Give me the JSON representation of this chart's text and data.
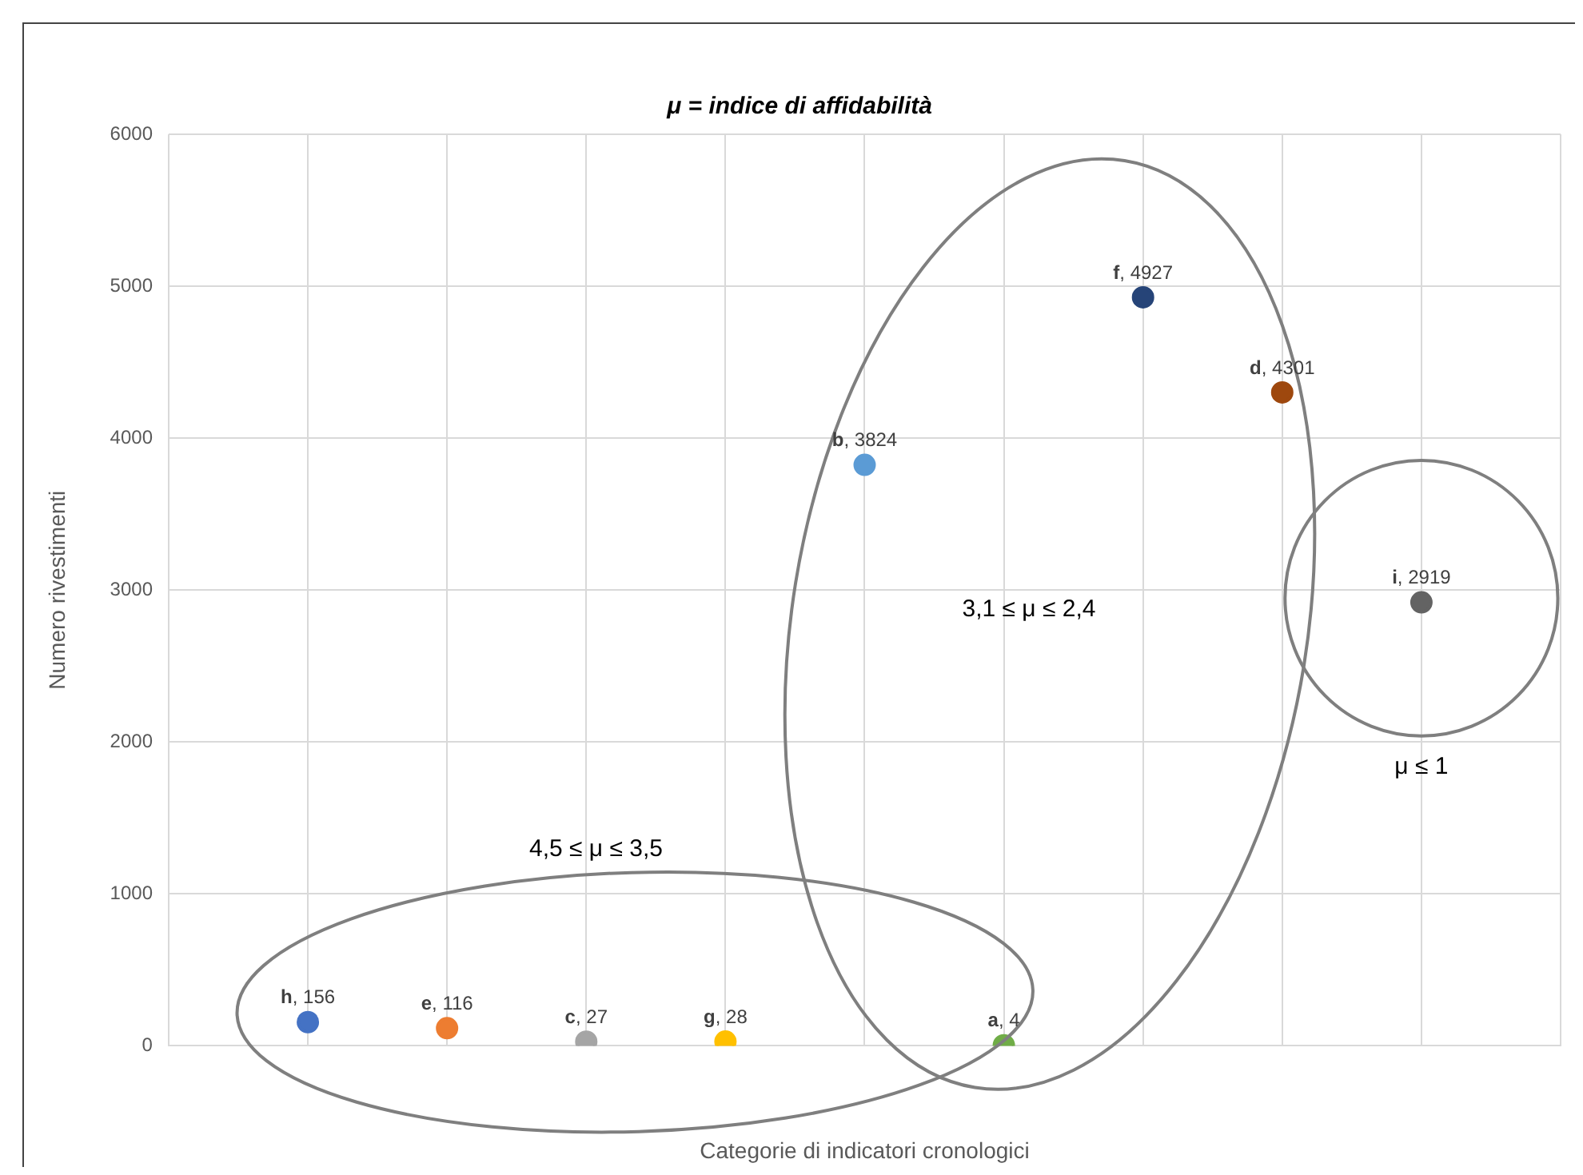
{
  "chart_data": {
    "type": "scatter",
    "title": "μ = indice di affidabilità",
    "xlabel": "Categorie di indicatori cronologici",
    "ylabel": "Numero rivestimenti",
    "categories": [
      null,
      null,
      null,
      null,
      null,
      null,
      null,
      null,
      null
    ],
    "series": [
      {
        "name": "h",
        "color": "#4472c4",
        "values": [
          156,
          null,
          null,
          null,
          null,
          null,
          null,
          null,
          null
        ],
        "value_labels": [
          ", 156",
          null,
          null,
          null,
          null,
          null,
          null,
          null,
          null
        ]
      },
      {
        "name": "e",
        "color": "#ed7d31",
        "values": [
          null,
          116,
          null,
          null,
          null,
          null,
          null,
          null,
          null
        ],
        "value_labels": [
          null,
          ", 116",
          null,
          null,
          null,
          null,
          null,
          null,
          null
        ]
      },
      {
        "name": "c",
        "color": "#a5a5a5",
        "values": [
          null,
          null,
          27,
          null,
          null,
          null,
          null,
          null,
          null
        ],
        "value_labels": [
          null,
          null,
          ", 27",
          null,
          null,
          null,
          null,
          null,
          null
        ]
      },
      {
        "name": "g",
        "color": "#ffc000",
        "values": [
          null,
          null,
          null,
          28,
          null,
          null,
          null,
          null,
          null
        ],
        "value_labels": [
          null,
          null,
          null,
          ", 28",
          null,
          null,
          null,
          null,
          null
        ]
      },
      {
        "name": "b",
        "color": "#5b9bd5",
        "values": [
          null,
          null,
          null,
          null,
          3824,
          null,
          null,
          null,
          null
        ],
        "value_labels": [
          null,
          null,
          null,
          null,
          ", 3824",
          null,
          null,
          null,
          null
        ]
      },
      {
        "name": "a",
        "color": "#70ad47",
        "values": [
          null,
          null,
          null,
          null,
          null,
          4,
          null,
          null,
          null
        ],
        "value_labels": [
          null,
          null,
          null,
          null,
          null,
          ", 4",
          null,
          null,
          null
        ]
      },
      {
        "name": "f",
        "color": "#264478",
        "values": [
          null,
          null,
          null,
          null,
          null,
          null,
          4927,
          null,
          null
        ],
        "value_labels": [
          null,
          null,
          null,
          null,
          null,
          null,
          ", 4927",
          null,
          null
        ]
      },
      {
        "name": "d",
        "color": "#9e480e",
        "values": [
          null,
          null,
          null,
          null,
          null,
          null,
          null,
          4301,
          null
        ],
        "value_labels": [
          null,
          null,
          null,
          null,
          null,
          null,
          null,
          ", 4301",
          null
        ]
      },
      {
        "name": "i",
        "color": "#636363",
        "values": [
          null,
          null,
          null,
          null,
          null,
          null,
          null,
          null,
          2919
        ],
        "value_labels": [
          null,
          null,
          null,
          null,
          null,
          null,
          null,
          null,
          ", 2919"
        ]
      }
    ],
    "ylim": [
      0,
      6000
    ],
    "yticks": [
      0,
      1000,
      2000,
      3000,
      4000,
      5000,
      6000
    ],
    "annotations": [
      "4,5 ≤ μ ≤ 3,5",
      "3,1 ≤ μ ≤ 2,4",
      "μ ≤ 1"
    ],
    "grid": true,
    "legend": false,
    "marker": "circle",
    "tick_labels": "y"
  }
}
